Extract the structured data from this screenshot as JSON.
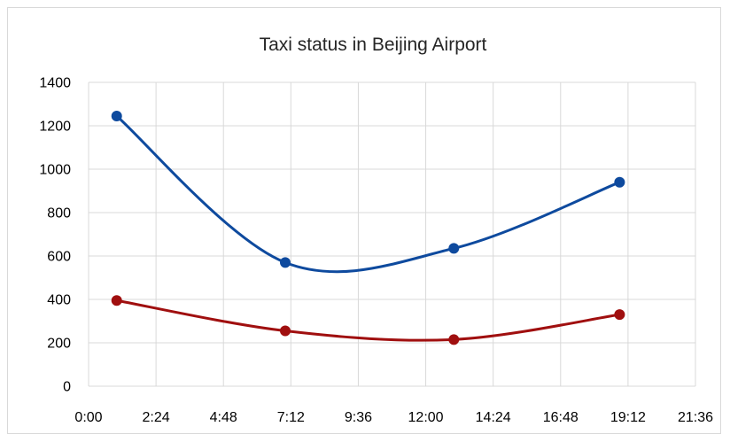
{
  "chart_data": {
    "type": "line",
    "title": "Taxi status in Beijing Airport",
    "xlabel": "",
    "ylabel": "",
    "x_unit": "hours",
    "xlim": [
      0,
      21.6
    ],
    "ylim": [
      0,
      1400
    ],
    "x_ticks": [
      {
        "value": 0,
        "label": "0:00"
      },
      {
        "value": 2.4,
        "label": "2:24"
      },
      {
        "value": 4.8,
        "label": "4:48"
      },
      {
        "value": 7.2,
        "label": "7:12"
      },
      {
        "value": 9.6,
        "label": "9:36"
      },
      {
        "value": 12.0,
        "label": "12:00"
      },
      {
        "value": 14.4,
        "label": "14:24"
      },
      {
        "value": 16.8,
        "label": "16:48"
      },
      {
        "value": 19.2,
        "label": "19:12"
      },
      {
        "value": 21.6,
        "label": "21:36"
      }
    ],
    "y_ticks": [
      {
        "value": 0,
        "label": "0"
      },
      {
        "value": 200,
        "label": "200"
      },
      {
        "value": 400,
        "label": "400"
      },
      {
        "value": 600,
        "label": "600"
      },
      {
        "value": 800,
        "label": "800"
      },
      {
        "value": 1000,
        "label": "1000"
      },
      {
        "value": 1200,
        "label": "1200"
      },
      {
        "value": 1400,
        "label": "1400"
      }
    ],
    "grid": true,
    "legend": "none",
    "smooth": true,
    "series": [
      {
        "color": "#0e4a9e",
        "x": [
          1.0,
          7.0,
          13.0,
          18.9
        ],
        "y": [
          1245,
          570,
          635,
          940
        ]
      },
      {
        "color": "#a00f0f",
        "x": [
          1.0,
          7.0,
          13.0,
          18.9
        ],
        "y": [
          395,
          255,
          215,
          330
        ]
      }
    ]
  }
}
